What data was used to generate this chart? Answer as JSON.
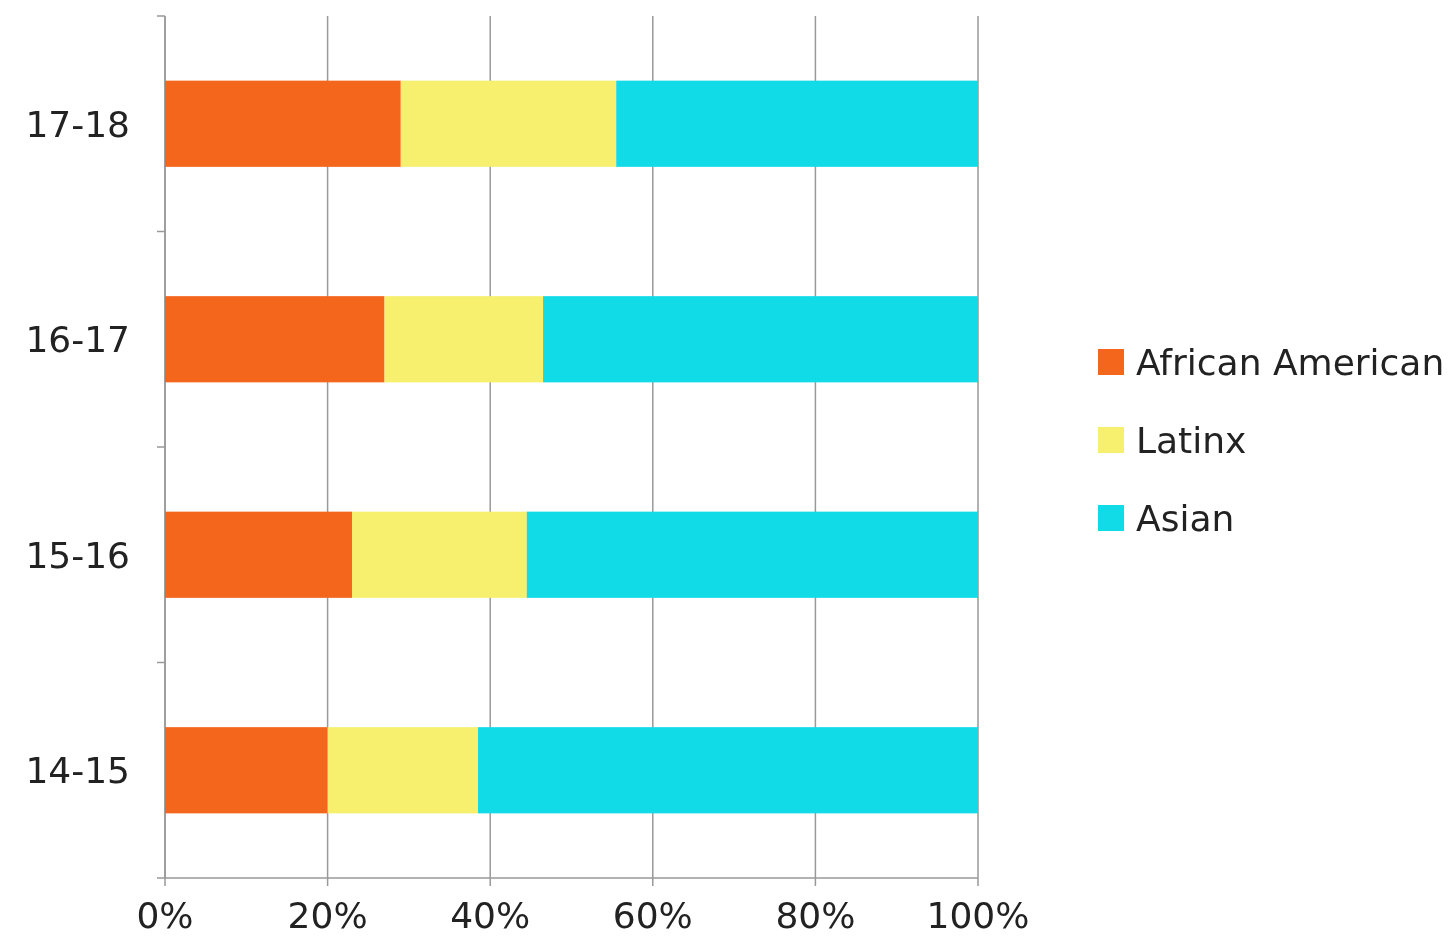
{
  "chart_data": {
    "type": "bar",
    "orientation": "horizontal",
    "stacked": true,
    "categories": [
      "17-18",
      "16-17",
      "15-16",
      "14-15"
    ],
    "series": [
      {
        "name": "African American",
        "color": "#f4661b",
        "values": [
          29,
          27,
          23,
          20
        ]
      },
      {
        "name": "Latinx",
        "color": "#f6f06e",
        "values": [
          26.5,
          19.5,
          21.5,
          18.5
        ]
      },
      {
        "name": "Asian",
        "color": "#12dbe8",
        "values": [
          44.5,
          53.5,
          55.5,
          61.5
        ]
      }
    ],
    "xlim": [
      0,
      100
    ],
    "xticks": [
      {
        "value": 0,
        "label": "0%"
      },
      {
        "value": 20,
        "label": "20%"
      },
      {
        "value": 40,
        "label": "40%"
      },
      {
        "value": 60,
        "label": "60%"
      },
      {
        "value": 80,
        "label": "80%"
      },
      {
        "value": 100,
        "label": "100%"
      }
    ],
    "grid": "x",
    "legend": "right"
  }
}
